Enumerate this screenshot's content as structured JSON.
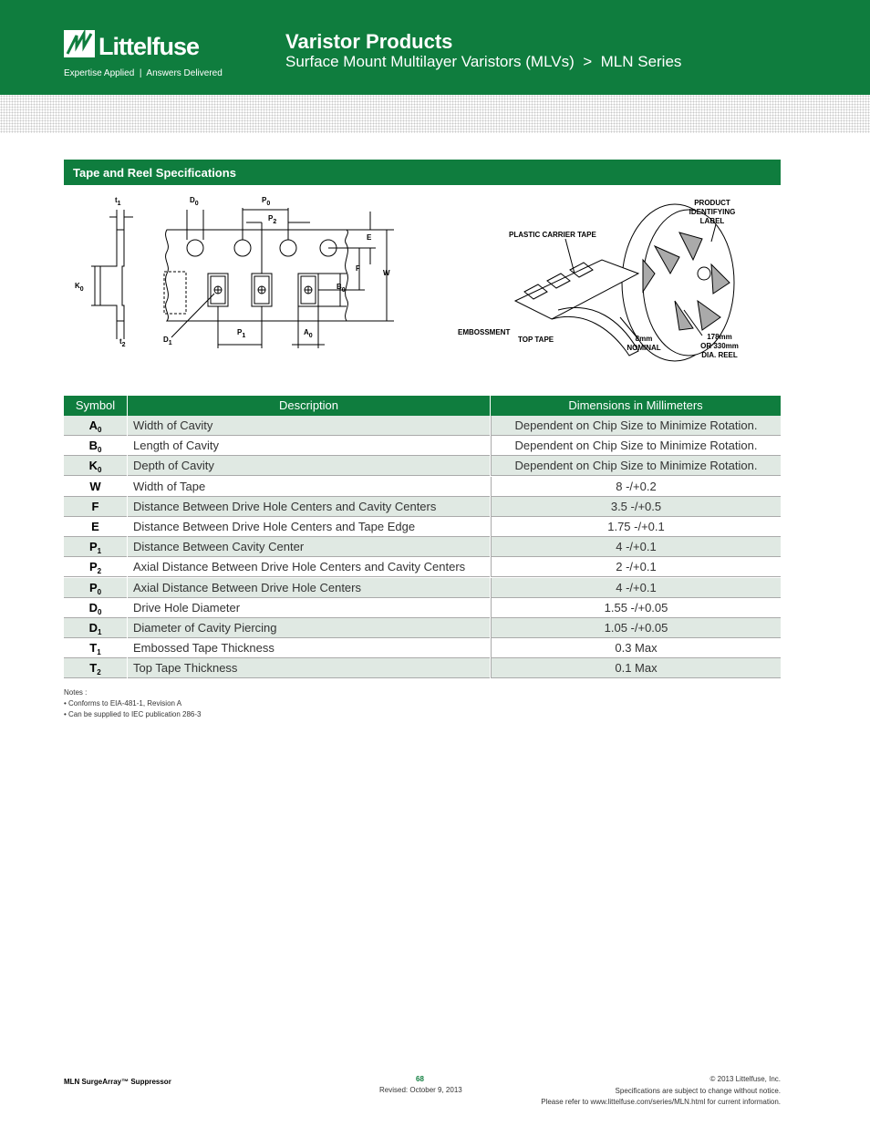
{
  "header": {
    "logo": "Littelfuse",
    "tagline": "Expertise Applied  |  Answers Delivered",
    "title": "Varistor Products",
    "subtitle": "Surface Mount Multilayer Varistors (MLVs)  >  MLN Series"
  },
  "section": {
    "title": "Tape and Reel Specifications"
  },
  "diagram": {
    "tape_labels": [
      {
        "text": "t",
        "sub": "1"
      },
      {
        "text": "D",
        "sub": "0"
      },
      {
        "text": "P",
        "sub": "0"
      },
      {
        "text": "P",
        "sub": "2"
      },
      {
        "text": "E"
      },
      {
        "text": "F"
      },
      {
        "text": "W"
      },
      {
        "text": "K",
        "sub": "0"
      },
      {
        "text": "B",
        "sub": "0"
      },
      {
        "text": "t",
        "sub": "2"
      },
      {
        "text": "D",
        "sub": "1"
      },
      {
        "text": "P",
        "sub": "1"
      },
      {
        "text": "A",
        "sub": "0"
      }
    ],
    "reel_labels": [
      [
        "PRODUCT",
        "IDENTIFYING",
        "LABEL"
      ],
      [
        "PLASTIC CARRIER TAPE"
      ],
      [
        "EMBOSSMENT"
      ],
      [
        "TOP TAPE"
      ],
      [
        "8mm",
        "NOMINAL"
      ],
      [
        "178mm",
        "OR 330mm",
        "DIA. REEL"
      ]
    ]
  },
  "table": {
    "columns": [
      "Symbol",
      "Description",
      "Dimensions in Millimeters"
    ],
    "rows": [
      {
        "symbol": {
          "main": "A",
          "sub": "0"
        },
        "description": "Width of Cavity",
        "dimension": "Dependent on Chip Size to Minimize Rotation."
      },
      {
        "symbol": {
          "main": "B",
          "sub": "0"
        },
        "description": "Length of Cavity",
        "dimension": "Dependent on Chip Size to Minimize Rotation."
      },
      {
        "symbol": {
          "main": "K",
          "sub": "0"
        },
        "description": "Depth of Cavity",
        "dimension": "Dependent on Chip Size to Minimize Rotation."
      },
      {
        "symbol": {
          "main": "W"
        },
        "description": "Width of Tape",
        "dimension": "8 -/+0.2"
      },
      {
        "symbol": {
          "main": "F"
        },
        "description": "Distance Between Drive Hole Centers and Cavity Centers",
        "dimension": "3.5 -/+0.5"
      },
      {
        "symbol": {
          "main": "E"
        },
        "description": "Distance Between Drive Hole Centers and Tape Edge",
        "dimension": "1.75 -/+0.1"
      },
      {
        "symbol": {
          "main": "P",
          "sub": "1"
        },
        "description": "Distance Between Cavity Center",
        "dimension": "4 -/+0.1"
      },
      {
        "symbol": {
          "main": "P",
          "sub": "2"
        },
        "description": "Axial Distance Between Drive Hole Centers and Cavity Centers",
        "dimension": "2 -/+0.1"
      },
      {
        "symbol": {
          "main": "P",
          "sub": "0"
        },
        "description": "Axial Distance Between Drive Hole Centers",
        "dimension": "4 -/+0.1"
      },
      {
        "symbol": {
          "main": "D",
          "sub": "0"
        },
        "description": "Drive Hole Diameter",
        "dimension": "1.55 -/+0.05"
      },
      {
        "symbol": {
          "main": "D",
          "sub": "1"
        },
        "description": "Diameter of Cavity Piercing",
        "dimension": "1.05 -/+0.05"
      },
      {
        "symbol": {
          "main": "T",
          "sub": "1"
        },
        "description": "Embossed Tape Thickness",
        "dimension": "0.3 Max"
      },
      {
        "symbol": {
          "main": "T",
          "sub": "2"
        },
        "description": "Top Tape Thickness",
        "dimension": "0.1 Max"
      }
    ]
  },
  "notes": {
    "title": "Notes :",
    "items": [
      "• Conforms to EIA-481-1, Revision A",
      "• Can be supplied to IEC publication 286-3"
    ]
  },
  "footer": {
    "product": "MLN SurgeArray™ Suppressor",
    "page": "68",
    "revised": "Revised: October 9, 2013",
    "copyright": "© 2013 Littelfuse, Inc.",
    "disclaimer": "Specifications are subject to change without notice.",
    "reference": "Please refer to www.littelfuse.com/series/MLN.html for current information."
  }
}
